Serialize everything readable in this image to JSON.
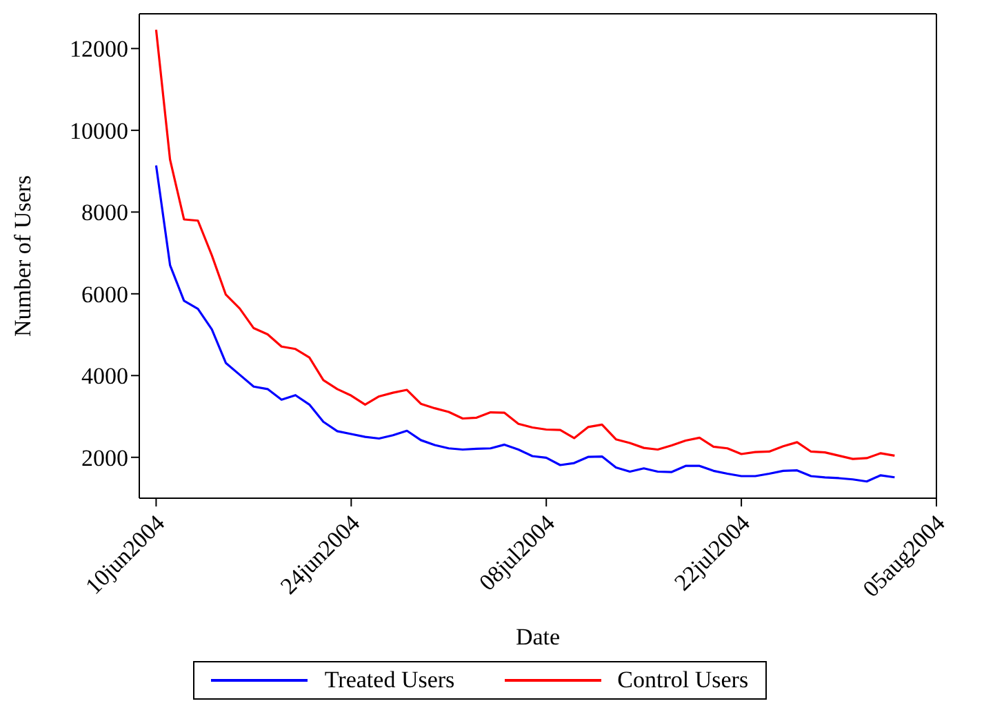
{
  "chart_data": {
    "type": "line",
    "xlabel": "Date",
    "ylabel": "Number of Users",
    "x": [
      "2004-06-10",
      "2004-06-11",
      "2004-06-12",
      "2004-06-13",
      "2004-06-14",
      "2004-06-15",
      "2004-06-16",
      "2004-06-17",
      "2004-06-18",
      "2004-06-19",
      "2004-06-20",
      "2004-06-21",
      "2004-06-22",
      "2004-06-23",
      "2004-06-24",
      "2004-06-25",
      "2004-06-26",
      "2004-06-27",
      "2004-06-28",
      "2004-06-29",
      "2004-06-30",
      "2004-07-01",
      "2004-07-02",
      "2004-07-03",
      "2004-07-04",
      "2004-07-05",
      "2004-07-06",
      "2004-07-07",
      "2004-07-08",
      "2004-07-09",
      "2004-07-10",
      "2004-07-11",
      "2004-07-12",
      "2004-07-13",
      "2004-07-14",
      "2004-07-15",
      "2004-07-16",
      "2004-07-17",
      "2004-07-18",
      "2004-07-19",
      "2004-07-20",
      "2004-07-21",
      "2004-07-22",
      "2004-07-23",
      "2004-07-24",
      "2004-07-25",
      "2004-07-26",
      "2004-07-27",
      "2004-07-28",
      "2004-07-29",
      "2004-07-30",
      "2004-07-31",
      "2004-08-01",
      "2004-08-02"
    ],
    "series": [
      {
        "name": "Treated Users",
        "color": "#0000ff",
        "values": [
          9140,
          6700,
          5830,
          5630,
          5130,
          4310,
          4020,
          3730,
          3670,
          3410,
          3520,
          3290,
          2870,
          2640,
          2570,
          2500,
          2460,
          2540,
          2650,
          2420,
          2300,
          2220,
          2190,
          2210,
          2220,
          2310,
          2190,
          2030,
          1990,
          1810,
          1860,
          2010,
          2020,
          1750,
          1650,
          1730,
          1650,
          1640,
          1790,
          1790,
          1670,
          1600,
          1540,
          1540,
          1600,
          1670,
          1680,
          1540,
          1510,
          1490,
          1460,
          1410,
          1560,
          1510
        ]
      },
      {
        "name": "Control Users",
        "color": "#ff0000",
        "values": [
          12460,
          9280,
          7820,
          7790,
          6940,
          5980,
          5640,
          5160,
          5010,
          4710,
          4650,
          4440,
          3890,
          3670,
          3510,
          3290,
          3490,
          3580,
          3650,
          3310,
          3200,
          3110,
          2950,
          2970,
          3100,
          3090,
          2820,
          2730,
          2680,
          2670,
          2470,
          2740,
          2800,
          2440,
          2350,
          2230,
          2190,
          2290,
          2410,
          2480,
          2260,
          2220,
          2080,
          2130,
          2140,
          2270,
          2370,
          2140,
          2120,
          2040,
          1960,
          1980,
          2100,
          2040
        ]
      }
    ],
    "xlim": [
      "2004-06-08T19:00",
      "2004-08-05"
    ],
    "xticks": [
      {
        "value": "2004-06-10",
        "label": "10jun2004"
      },
      {
        "value": "2004-06-24",
        "label": "24jun2004"
      },
      {
        "value": "2004-07-08",
        "label": "08jul2004"
      },
      {
        "value": "2004-07-22",
        "label": "22jul2004"
      },
      {
        "value": "2004-08-05",
        "label": "05aug2004"
      }
    ],
    "ylim": [
      1000,
      12850
    ],
    "yticks": [
      2000,
      4000,
      6000,
      8000,
      10000,
      12000
    ],
    "grid": false,
    "legend": "bottom",
    "marker": "none",
    "line_style": "solid"
  }
}
